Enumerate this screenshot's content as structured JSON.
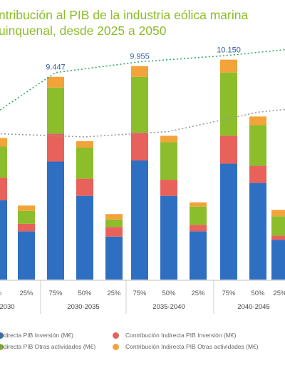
{
  "title": {
    "line1": "ntribución al PIB de la industria eólica marina",
    "line2": "uinquenal, desde 2025 a 2050"
  },
  "legend": {
    "items": [
      {
        "label": "ndirecta PIB Inversión (M€)",
        "color": "#2e6fc2"
      },
      {
        "label": "Contribución Indirecta PIB Inversión (M€)",
        "color": "#e8615a"
      },
      {
        "label": "ndirecta PIB Otras actividades (M€)",
        "color": "#8cbd2a"
      },
      {
        "label": "Contribución Indirecta PIB Otras actividades (M€)",
        "color": "#f2a33a"
      }
    ]
  },
  "colors": {
    "blue": "#2e6fc2",
    "red": "#e8615a",
    "green": "#8cbd2a",
    "orange": "#f2a33a",
    "trend": "#2fae5e",
    "total_label": "#2e5aa8",
    "grid": "#cfcfcf"
  },
  "chart_data": {
    "type": "bar",
    "stacked": true,
    "periods": [
      "2030",
      "2030-2035",
      "2035-2040",
      "2040-2045"
    ],
    "scenario_labels": [
      "%",
      "25%",
      "75%",
      "50%",
      "25%",
      "75%",
      "50%",
      "25%",
      "75%",
      "50%",
      "25%"
    ],
    "series_names": [
      "ndirecta PIB Inversión (M€)",
      "Contribución Indirecta PIB Inversión (M€)",
      "ndirecta PIB Otras actividades (M€)",
      "Contribución Indirecta PIB Otras actividades (M€)"
    ],
    "bars": [
      {
        "blue": 3700,
        "red": 1050,
        "green": 1450,
        "orange": 400
      },
      {
        "blue": 2250,
        "red": 350,
        "green": 600,
        "orange": 250
      },
      {
        "blue": 5500,
        "red": 1300,
        "green": 2150,
        "orange": 500
      },
      {
        "blue": 3900,
        "red": 800,
        "green": 1450,
        "orange": 300
      },
      {
        "blue": 2000,
        "red": 450,
        "green": 350,
        "orange": 250
      },
      {
        "blue": 5550,
        "red": 1300,
        "green": 2600,
        "orange": 500
      },
      {
        "blue": 3900,
        "red": 750,
        "green": 1750,
        "orange": 300
      },
      {
        "blue": 2250,
        "red": 300,
        "green": 850,
        "orange": 200
      },
      {
        "blue": 5400,
        "red": 1300,
        "green": 2950,
        "orange": 600
      },
      {
        "blue": 4500,
        "red": 800,
        "green": 1900,
        "orange": 400
      },
      {
        "blue": 1850,
        "red": 200,
        "green": 900,
        "orange": 300
      }
    ],
    "totals_shown": {
      "2": "9.447",
      "5": "9.955",
      "8": "10.150"
    },
    "ylim": [
      0,
      14000
    ]
  }
}
